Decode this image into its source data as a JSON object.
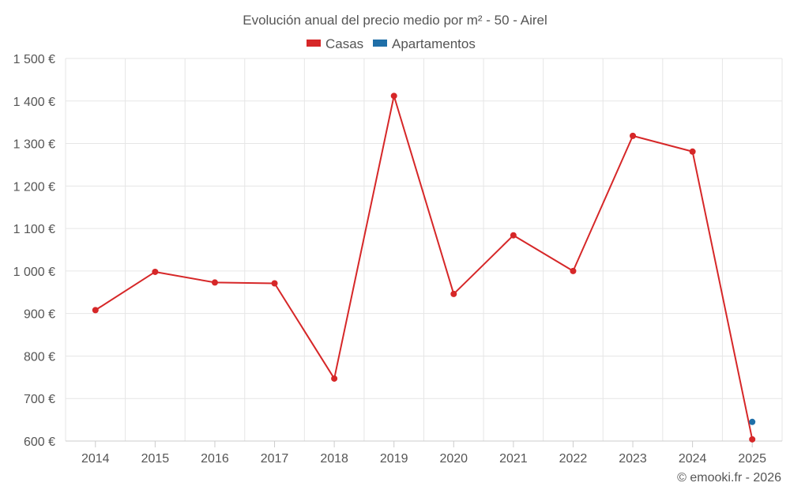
{
  "chart_data": {
    "type": "line",
    "title": "Evolución anual del precio medio por m² - 50 - Airel",
    "x": [
      "2014",
      "2015",
      "2016",
      "2017",
      "2018",
      "2019",
      "2020",
      "2021",
      "2022",
      "2023",
      "2024",
      "2025"
    ],
    "series": [
      {
        "name": "Casas",
        "color": "#d62728",
        "values": [
          908,
          998,
          973,
          971,
          747,
          1412,
          946,
          1084,
          1000,
          1318,
          1281,
          604
        ]
      },
      {
        "name": "Apartamentos",
        "color": "#1f6fa8",
        "values": [
          null,
          null,
          null,
          null,
          null,
          null,
          null,
          null,
          null,
          null,
          null,
          645
        ]
      }
    ],
    "ylim": [
      600,
      1500
    ],
    "y_ticks": [
      600,
      700,
      800,
      900,
      1000,
      1100,
      1200,
      1300,
      1400,
      1500
    ],
    "y_tick_labels": [
      "600 €",
      "700 €",
      "800 €",
      "900 €",
      "1 000 €",
      "1 100 €",
      "1 200 €",
      "1 300 €",
      "1 400 €",
      "1 500 €"
    ],
    "grid": true,
    "legend_position": "top-center"
  },
  "credit": "© emooki.fr - 2026"
}
